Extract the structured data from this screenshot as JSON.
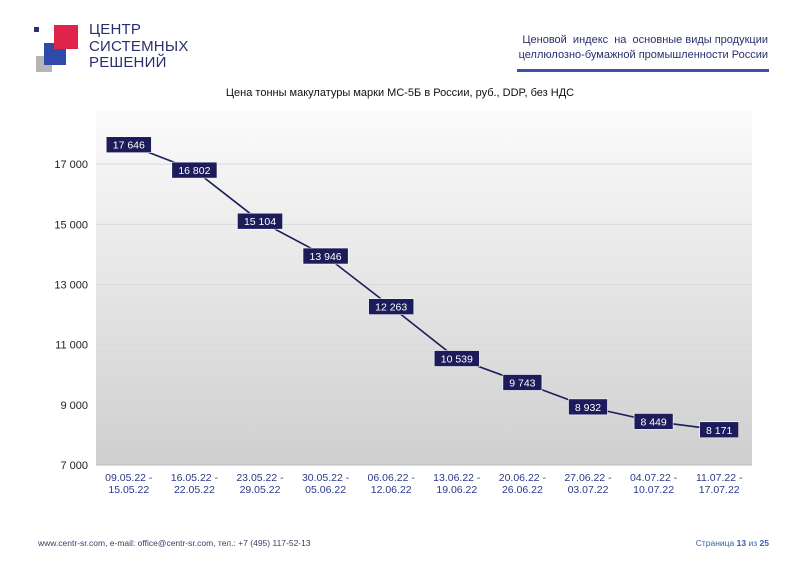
{
  "header": {
    "logo_lines": [
      "ЦЕНТР",
      "СИСТЕМНЫХ",
      "РЕШЕНИЙ"
    ],
    "doc_title_line1": "Ценовой  индекс  на  основные виды продукции",
    "doc_title_line2": "целлюлозно-бумажной промышленности России"
  },
  "colors": {
    "logo_red": "#e0234b",
    "logo_blue": "#2f4aa8",
    "logo_gray": "#b5b5b5",
    "accent_bar": "#3a4fb0",
    "line": "#1c1c5a",
    "label_bg": "#1c1c5a",
    "label_text": "#ffffff",
    "plot_bg_top": "#fbfbfb",
    "plot_bg_bottom": "#cfcfcf"
  },
  "chart_data": {
    "type": "line",
    "title": "Цена тонны макулатуры марки МС-5Б в России, руб., DDP, без НДС",
    "categories": [
      [
        "09.05.22 -",
        "15.05.22"
      ],
      [
        "16.05.22 -",
        "22.05.22"
      ],
      [
        "23.05.22 -",
        "29.05.22"
      ],
      [
        "30.05.22 -",
        "05.06.22"
      ],
      [
        "06.06.22 -",
        "12.06.22"
      ],
      [
        "13.06.22 -",
        "19.06.22"
      ],
      [
        "20.06.22 -",
        "26.06.22"
      ],
      [
        "27.06.22 -",
        "03.07.22"
      ],
      [
        "04.07.22 -",
        "10.07.22"
      ],
      [
        "11.07.22 -",
        "17.07.22"
      ]
    ],
    "values": [
      17646,
      16802,
      15104,
      13946,
      12263,
      10539,
      9743,
      8932,
      8449,
      8171
    ],
    "value_labels": [
      "17 646",
      "16 802",
      "15 104",
      "13 946",
      "12 263",
      "10 539",
      "9 743",
      "8 932",
      "8 449",
      "8 171"
    ],
    "yticks": [
      7000,
      9000,
      11000,
      13000,
      15000,
      17000
    ],
    "ytick_labels": [
      "7 000",
      "9 000",
      "11 000",
      "13 000",
      "15 000",
      "17 000"
    ],
    "ylim": [
      7000,
      18800
    ],
    "grid": true,
    "legend": "none"
  },
  "footer": {
    "contacts": "www.centr-sr.com, e-mail: office@centr-sr.com, тел.: +7 (495) 117-52-13",
    "page_prefix": "Страница",
    "page_current": "13",
    "page_sep": "из",
    "page_total": "25"
  }
}
